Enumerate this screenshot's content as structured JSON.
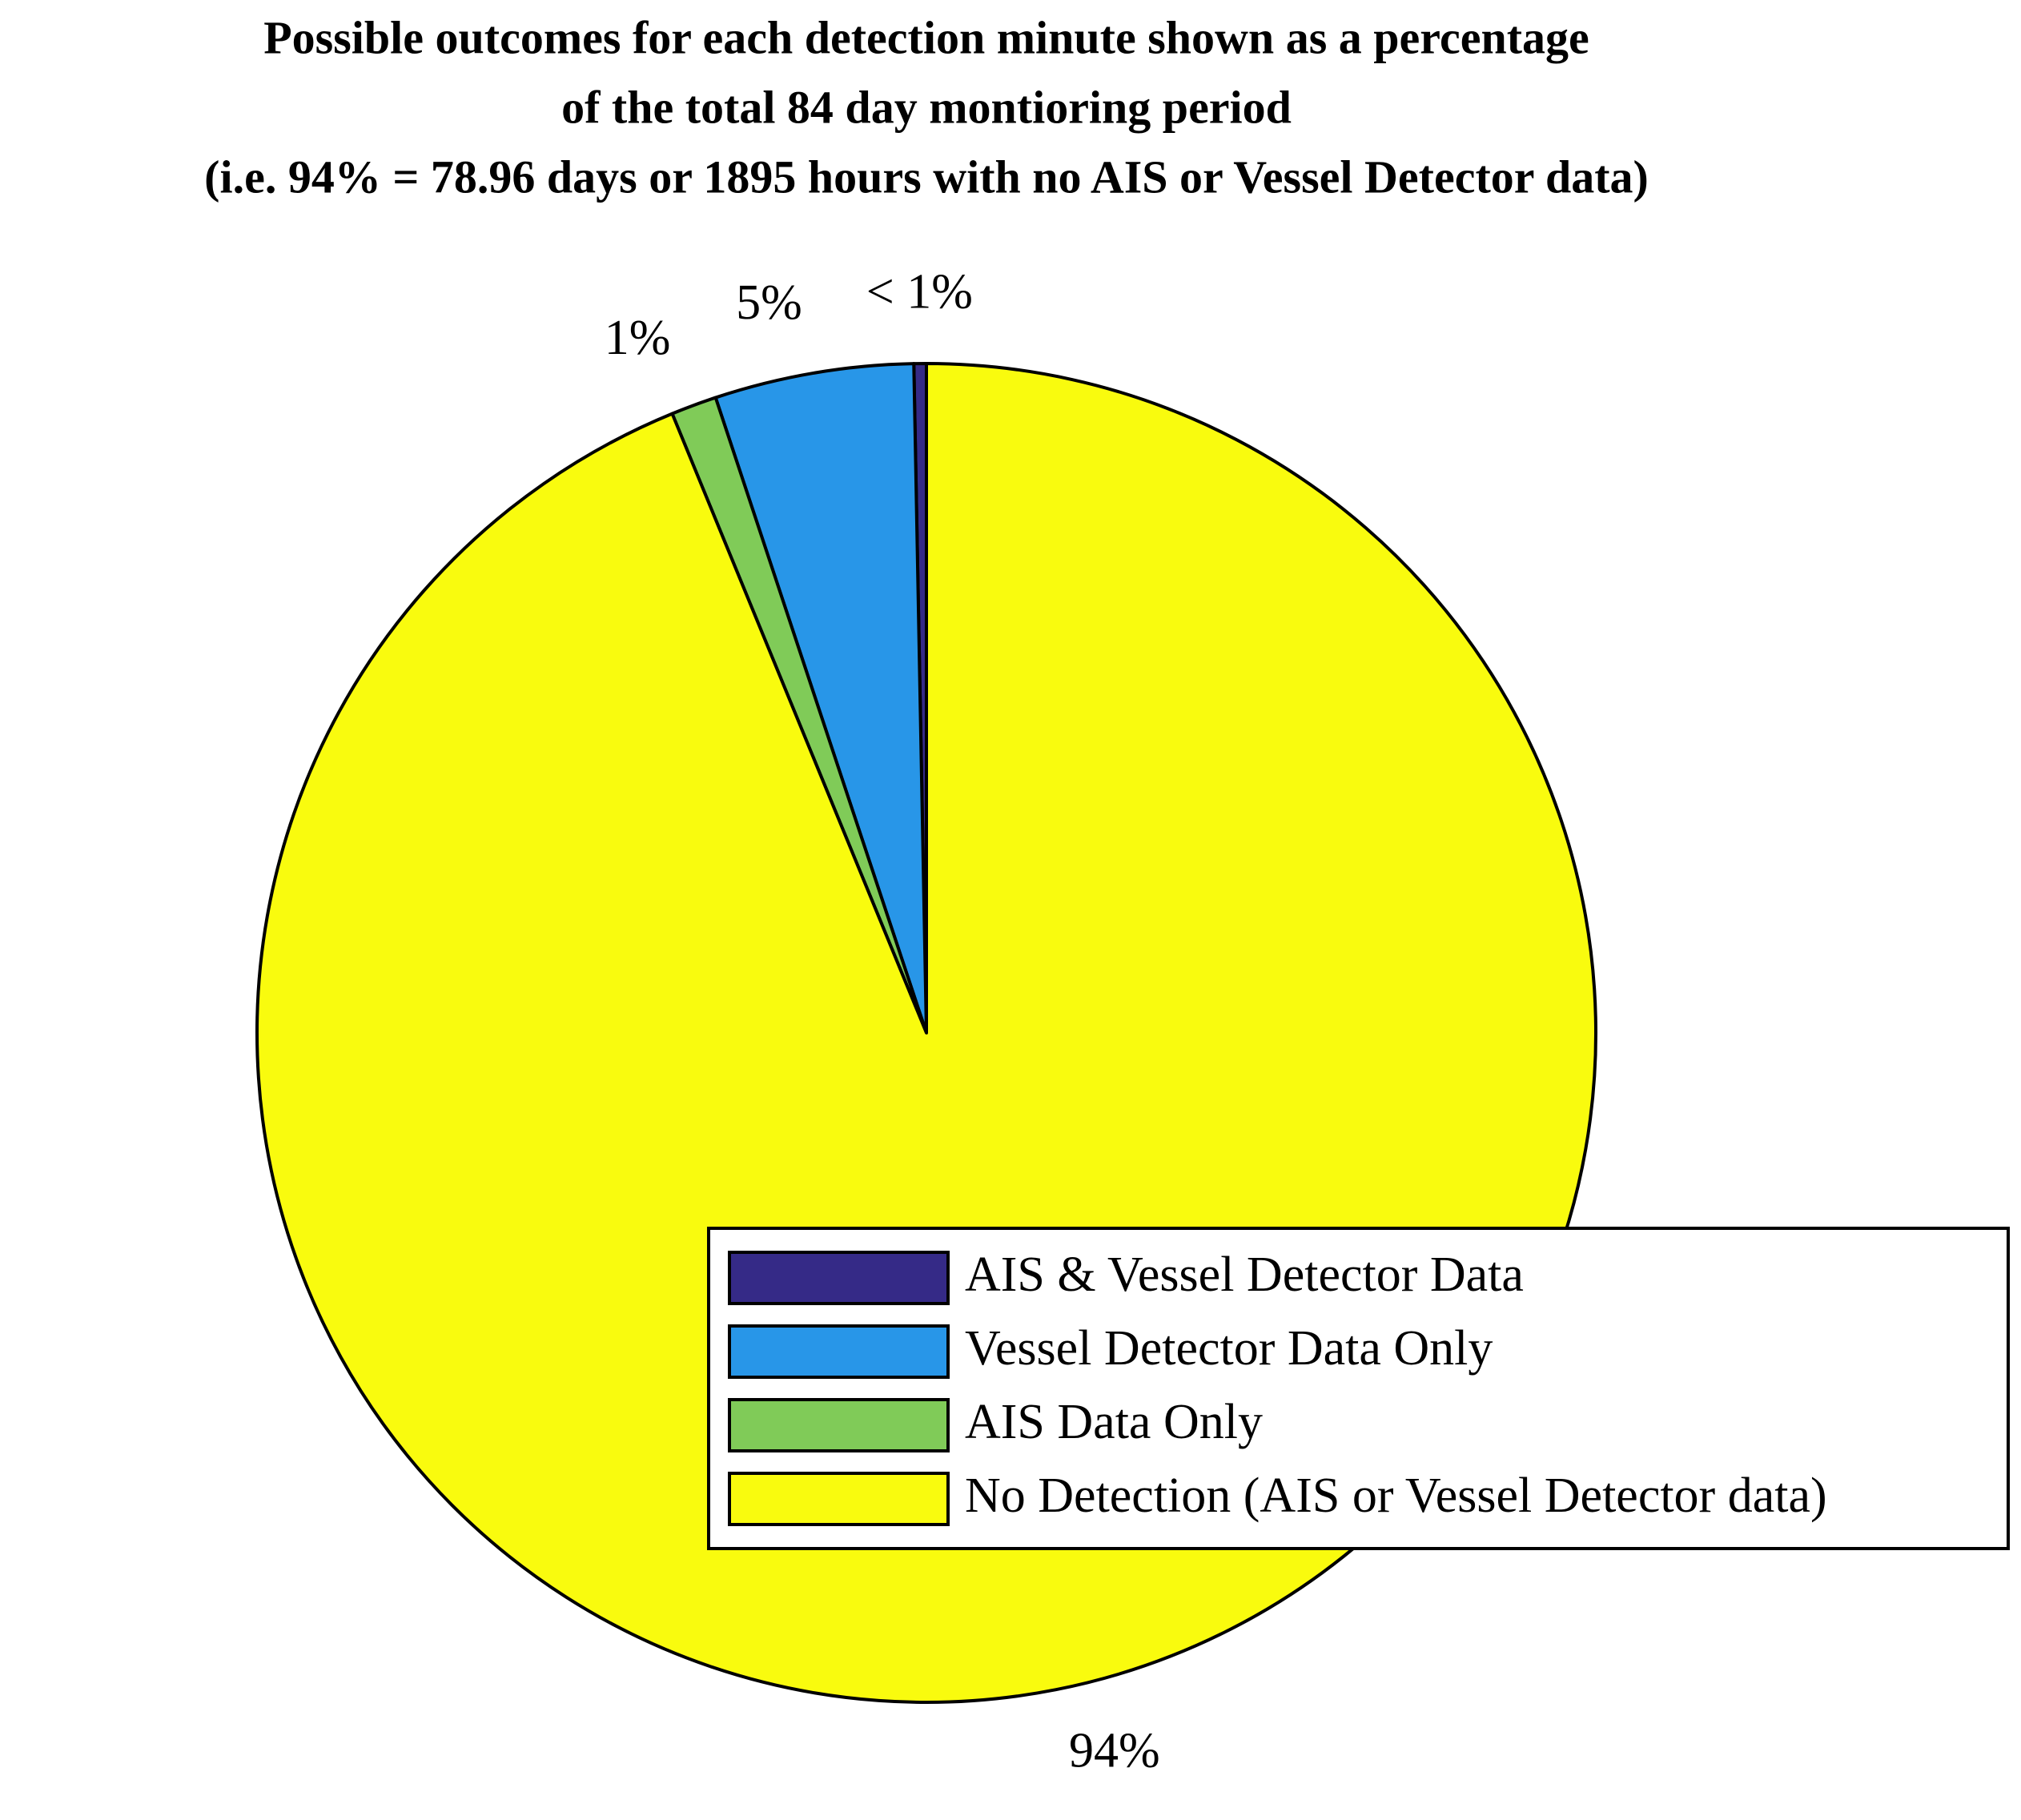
{
  "chart_data": {
    "type": "pie",
    "title": [
      "Possible outcomes for each detection minute shown as a percentage",
      "of the total 84 day montioring period",
      "(i.e. 94% = 78.96 days or 1895 hours with no AIS or Vessel Detector data)"
    ],
    "categories": [
      "AIS & Vessel Detector Data",
      "Vessel Detector Data Only",
      "AIS Data Only",
      "No Detection (AIS or Vessel Detector data)"
    ],
    "values": [
      0.3,
      4.8,
      1.1,
      93.8
    ],
    "value_labels": [
      "< 1%",
      "5%",
      "1%",
      "94%"
    ],
    "colors": [
      "#352a87",
      "#2896e8",
      "#80cb58",
      "#f9fb0e"
    ],
    "legend": "lower right"
  }
}
